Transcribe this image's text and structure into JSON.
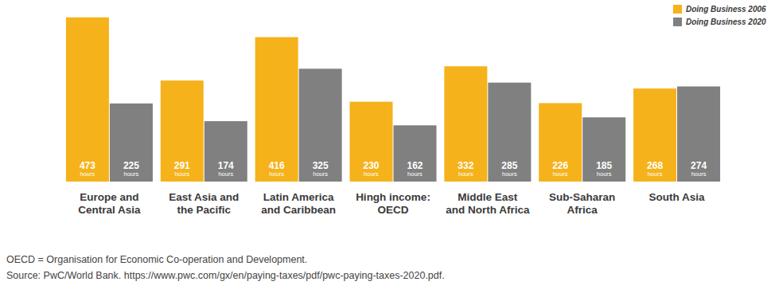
{
  "chart_data": {
    "type": "bar",
    "categories": [
      "Europe and\nCentral Asia",
      "East Asia and\nthe Pacific",
      "Latin America\nand Caribbean",
      "Hingh income:\nOECD",
      "Middle East\nand North Africa",
      "Sub-Saharan\nAfrica",
      "South Asia"
    ],
    "series": [
      {
        "name": "Doing Business 2006",
        "color": "#f6b21b",
        "values": [
          473,
          291,
          416,
          230,
          332,
          226,
          268
        ],
        "value_labels": [
          "473 hours",
          "291 hours",
          "416 hours",
          "230 hours",
          "332 hours",
          "226 hours",
          "268 hours"
        ]
      },
      {
        "name": "Doing Business 2020",
        "color": "#808080",
        "values": [
          225,
          174,
          325,
          162,
          285,
          185,
          274
        ],
        "value_labels": [
          "225 hours",
          "174 hours",
          "325 hours",
          "162 hours",
          "285 hours",
          "185 hours",
          "274 hours"
        ]
      }
    ],
    "ylim": [
      0,
      500
    ],
    "tick_labels": false,
    "grid": false,
    "legend": "top-right",
    "data_labels": true,
    "annotations": [
      "OECD = Organisation for Economic Co-operation and Development.",
      "Source: PwC/World Bank. https://www.pwc.com/gx/en/paying-taxes/pdf/pwc-paying-taxes-2020.pdf."
    ]
  }
}
